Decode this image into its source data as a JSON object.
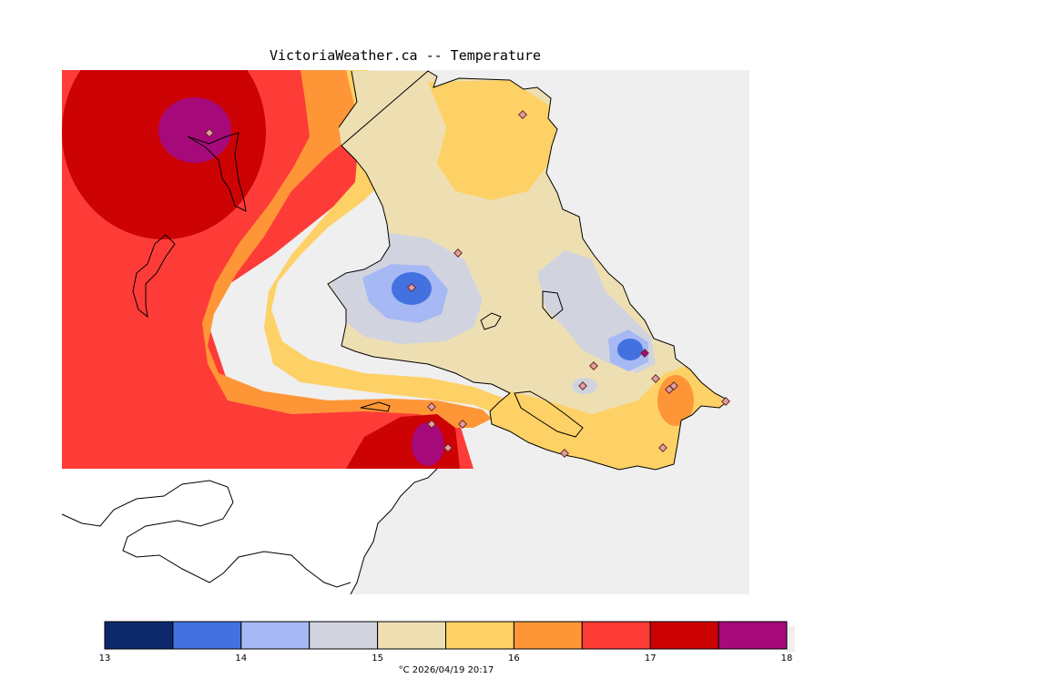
{
  "title": "VictoriaWeather.ca -- Temperature",
  "colorbar": {
    "tick_labels": [
      "13",
      "14",
      "15",
      "16",
      "17",
      "18"
    ],
    "caption": "°C  2026/04/19 20:17",
    "bins": [
      {
        "from": 13.0,
        "to": 13.5,
        "color": "#0c2a6b"
      },
      {
        "from": 13.5,
        "to": 14.0,
        "color": "#4372e0"
      },
      {
        "from": 14.0,
        "to": 14.5,
        "color": "#a6b9f4"
      },
      {
        "from": 14.5,
        "to": 15.0,
        "color": "#d1d4df"
      },
      {
        "from": 15.0,
        "to": 15.5,
        "color": "#eedfb3"
      },
      {
        "from": 15.5,
        "to": 16.0,
        "color": "#fed166"
      },
      {
        "from": 16.0,
        "to": 16.5,
        "color": "#fe9637"
      },
      {
        "from": 16.5,
        "to": 17.0,
        "color": "#fd3c37"
      },
      {
        "from": 17.0,
        "to": 17.5,
        "color": "#cd0204"
      },
      {
        "from": 17.5,
        "to": 18.0,
        "color": "#a6097a"
      }
    ]
  },
  "colors": {
    "water": "#efefef",
    "land_outside": "#ffffff",
    "station_marker": "#e0a0a0"
  },
  "stations": {
    "count": 17
  }
}
